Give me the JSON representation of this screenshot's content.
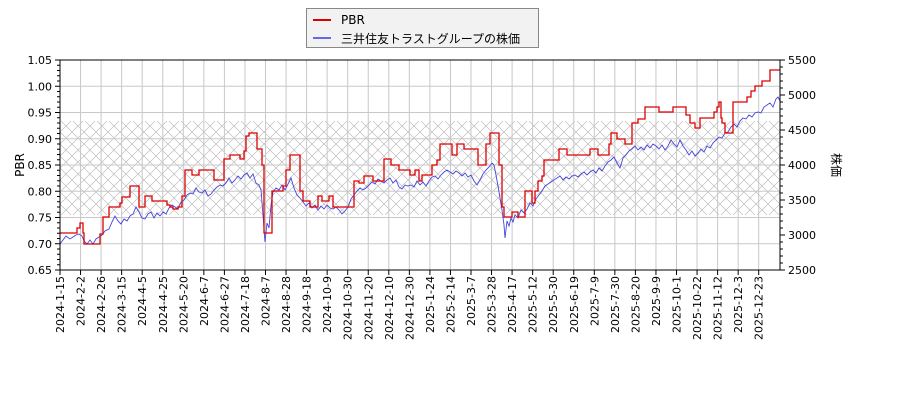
{
  "legend": {
    "items": [
      {
        "label": "PBR",
        "color": "#dd0000"
      },
      {
        "label": "三井住友トラストグループの株価",
        "color": "#4444dd"
      }
    ]
  },
  "axes": {
    "left_title": "PBR",
    "right_title": "株価",
    "left_ticks": [
      "0.65",
      "0.70",
      "0.75",
      "0.80",
      "0.85",
      "0.90",
      "0.95",
      "1.00",
      "1.05"
    ],
    "right_ticks": [
      "2500",
      "3000",
      "3500",
      "4000",
      "4500",
      "5000",
      "5500"
    ]
  },
  "chart_data": {
    "type": "line",
    "title": "",
    "xlabel": "",
    "ylabel": "PBR",
    "y2label": "株価",
    "ylim": [
      0.65,
      1.05
    ],
    "y2lim": [
      2500,
      5500
    ],
    "grid": true,
    "legend_position": "top-center",
    "shaded_band": {
      "y_from": 0.755,
      "y_to": 0.935,
      "pattern": "crosshatch"
    },
    "categories": [
      "2024-1-15",
      "2024-2-2",
      "2024-2-26",
      "2024-3-15",
      "2024-4-5",
      "2024-4-25",
      "2024-5-20",
      "2024-6-7",
      "2024-6-27",
      "2024-7-18",
      "2024-8-7",
      "2024-8-28",
      "2024-9-18",
      "2024-10-9",
      "2024-10-30",
      "2024-11-20",
      "2024-12-10",
      "2024-12-30",
      "2025-1-24",
      "2025-2-14",
      "2025-3-7",
      "2025-3-28",
      "2025-4-17",
      "2025-5-12",
      "2025-5-30",
      "2025-6-19",
      "2025-7-9",
      "2025-7-30",
      "2025-8-20",
      "2025-9-9",
      "2025-10-1",
      "2025-10-22",
      "2025-11-12",
      "2025-12-3",
      "2025-12-23"
    ],
    "series": [
      {
        "name": "PBR",
        "color": "#dd0000",
        "step": true,
        "values": [
          0.72,
          0.7,
          0.75,
          0.77,
          0.76,
          0.78,
          0.77,
          0.84,
          0.83,
          0.86,
          0.91,
          0.73,
          0.8,
          0.87,
          0.78,
          0.77,
          0.82,
          0.85,
          0.83,
          0.89,
          0.88,
          0.9,
          0.76,
          0.8,
          0.86,
          0.88,
          0.87,
          0.89,
          0.96,
          0.95,
          0.96,
          0.94,
          0.97,
          0.97,
          1.03
        ]
      },
      {
        "name": "三井住友トラストグループの株価",
        "color": "#4444dd",
        "axis": "right",
        "values": [
          2950,
          3000,
          3300,
          3450,
          3550,
          3500,
          3550,
          3750,
          3800,
          3900,
          4000,
          3100,
          3700,
          3650,
          3550,
          3550,
          3700,
          3700,
          3700,
          3900,
          3900,
          4050,
          3050,
          3500,
          3800,
          3850,
          3850,
          3950,
          4350,
          4400,
          4350,
          4250,
          4400,
          4800,
          5000
        ]
      }
    ]
  },
  "pbr_path": [
    [
      60,
      233
    ],
    [
      74,
      233
    ],
    [
      77,
      228
    ],
    [
      80,
      223
    ],
    [
      83,
      233
    ],
    [
      84,
      244
    ],
    [
      96,
      244
    ],
    [
      100,
      234
    ],
    [
      103,
      217
    ],
    [
      109,
      207
    ],
    [
      115,
      207
    ],
    [
      120,
      203
    ],
    [
      122,
      197
    ],
    [
      130,
      186
    ],
    [
      137,
      186
    ],
    [
      139,
      207
    ],
    [
      145,
      196
    ],
    [
      152,
      201
    ],
    [
      165,
      201
    ],
    [
      167,
      205
    ],
    [
      170,
      207
    ],
    [
      173,
      209
    ],
    [
      178,
      207
    ],
    [
      182,
      196
    ],
    [
      185,
      170
    ],
    [
      192,
      175
    ],
    [
      199,
      170
    ],
    [
      211,
      170
    ],
    [
      214,
      180
    ],
    [
      221,
      180
    ],
    [
      224,
      159
    ],
    [
      230,
      155
    ],
    [
      238,
      155
    ],
    [
      240,
      159
    ],
    [
      244,
      151
    ],
    [
      246,
      136
    ],
    [
      249,
      133
    ],
    [
      255,
      133
    ],
    [
      257,
      149
    ],
    [
      262,
      165
    ],
    [
      264,
      233
    ],
    [
      270,
      233
    ],
    [
      272,
      191
    ],
    [
      278,
      191
    ],
    [
      283,
      186
    ],
    [
      286,
      170
    ],
    [
      290,
      155
    ],
    [
      298,
      155
    ],
    [
      300,
      191
    ],
    [
      303,
      201
    ],
    [
      308,
      201
    ],
    [
      310,
      207
    ],
    [
      318,
      196
    ],
    [
      322,
      201
    ],
    [
      327,
      201
    ],
    [
      329,
      196
    ],
    [
      333,
      207
    ],
    [
      351,
      207
    ],
    [
      354,
      181
    ],
    [
      359,
      183
    ],
    [
      364,
      176
    ],
    [
      371,
      176
    ],
    [
      373,
      181
    ],
    [
      380,
      181
    ],
    [
      384,
      159
    ],
    [
      391,
      165
    ],
    [
      393,
      165
    ],
    [
      399,
      170
    ],
    [
      406,
      170
    ],
    [
      410,
      175
    ],
    [
      415,
      170
    ],
    [
      419,
      181
    ],
    [
      422,
      175
    ],
    [
      428,
      175
    ],
    [
      432,
      165
    ],
    [
      437,
      160
    ],
    [
      440,
      144
    ],
    [
      448,
      144
    ],
    [
      452,
      155
    ],
    [
      457,
      144
    ],
    [
      462,
      144
    ],
    [
      464,
      149
    ],
    [
      476,
      149
    ],
    [
      478,
      165
    ],
    [
      484,
      165
    ],
    [
      486,
      144
    ],
    [
      490,
      133
    ],
    [
      496,
      133
    ],
    [
      499,
      165
    ],
    [
      502,
      207
    ],
    [
      504,
      217
    ],
    [
      510,
      217
    ],
    [
      512,
      212
    ],
    [
      516,
      212
    ],
    [
      518,
      217
    ],
    [
      522,
      217
    ],
    [
      525,
      191
    ],
    [
      530,
      191
    ],
    [
      532,
      203
    ],
    [
      535,
      191
    ],
    [
      538,
      181
    ],
    [
      542,
      176
    ],
    [
      544,
      160
    ],
    [
      556,
      160
    ],
    [
      559,
      149
    ],
    [
      563,
      149
    ],
    [
      567,
      155
    ],
    [
      582,
      155
    ],
    [
      588,
      155
    ],
    [
      590,
      149
    ],
    [
      596,
      149
    ],
    [
      598,
      155
    ],
    [
      602,
      155
    ],
    [
      609,
      144
    ],
    [
      611,
      133
    ],
    [
      615,
      133
    ],
    [
      617,
      139
    ],
    [
      623,
      139
    ],
    [
      625,
      144
    ],
    [
      630,
      144
    ],
    [
      632,
      123
    ],
    [
      638,
      119
    ],
    [
      642,
      119
    ],
    [
      645,
      107
    ],
    [
      657,
      107
    ],
    [
      659,
      112
    ],
    [
      671,
      112
    ],
    [
      673,
      107
    ],
    [
      684,
      107
    ],
    [
      686,
      115
    ],
    [
      690,
      123
    ],
    [
      695,
      128
    ],
    [
      697,
      128
    ],
    [
      700,
      118
    ],
    [
      712,
      118
    ],
    [
      714,
      112
    ],
    [
      717,
      107
    ],
    [
      719,
      102
    ],
    [
      721,
      118
    ],
    [
      722,
      123
    ],
    [
      725,
      133
    ],
    [
      731,
      133
    ],
    [
      733,
      102
    ],
    [
      745,
      102
    ],
    [
      747,
      97
    ],
    [
      751,
      91
    ],
    [
      755,
      86
    ],
    [
      760,
      86
    ],
    [
      762,
      81
    ],
    [
      768,
      81
    ],
    [
      770,
      70
    ],
    [
      780,
      70
    ]
  ],
  "price_path": [
    [
      60,
      244
    ],
    [
      63,
      240
    ],
    [
      66,
      236
    ],
    [
      70,
      239
    ],
    [
      73,
      237
    ],
    [
      76,
      235
    ],
    [
      79,
      234
    ],
    [
      82,
      236
    ],
    [
      84,
      241
    ],
    [
      87,
      244
    ],
    [
      90,
      240
    ],
    [
      93,
      244
    ],
    [
      96,
      239
    ],
    [
      99,
      237
    ],
    [
      102,
      235
    ],
    [
      105,
      231
    ],
    [
      109,
      229
    ],
    [
      112,
      222
    ],
    [
      115,
      216
    ],
    [
      118,
      221
    ],
    [
      121,
      224
    ],
    [
      124,
      219
    ],
    [
      127,
      221
    ],
    [
      130,
      216
    ],
    [
      133,
      214
    ],
    [
      136,
      207
    ],
    [
      139,
      212
    ],
    [
      142,
      218
    ],
    [
      145,
      219
    ],
    [
      148,
      214
    ],
    [
      151,
      212
    ],
    [
      154,
      218
    ],
    [
      157,
      213
    ],
    [
      160,
      216
    ],
    [
      163,
      212
    ],
    [
      166,
      214
    ],
    [
      169,
      208
    ],
    [
      172,
      205
    ],
    [
      175,
      207
    ],
    [
      178,
      209
    ],
    [
      181,
      202
    ],
    [
      184,
      200
    ],
    [
      187,
      195
    ],
    [
      190,
      193
    ],
    [
      193,
      194
    ],
    [
      196,
      188
    ],
    [
      199,
      192
    ],
    [
      202,
      193
    ],
    [
      205,
      190
    ],
    [
      208,
      196
    ],
    [
      211,
      194
    ],
    [
      214,
      190
    ],
    [
      217,
      187
    ],
    [
      220,
      185
    ],
    [
      223,
      186
    ],
    [
      226,
      183
    ],
    [
      229,
      178
    ],
    [
      232,
      183
    ],
    [
      235,
      180
    ],
    [
      238,
      176
    ],
    [
      241,
      179
    ],
    [
      244,
      175
    ],
    [
      247,
      173
    ],
    [
      250,
      178
    ],
    [
      253,
      174
    ],
    [
      256,
      183
    ],
    [
      259,
      185
    ],
    [
      261,
      190
    ],
    [
      263,
      215
    ],
    [
      265,
      242
    ],
    [
      267,
      223
    ],
    [
      269,
      228
    ],
    [
      271,
      205
    ],
    [
      273,
      192
    ],
    [
      276,
      188
    ],
    [
      279,
      190
    ],
    [
      282,
      185
    ],
    [
      285,
      190
    ],
    [
      288,
      184
    ],
    [
      291,
      178
    ],
    [
      294,
      188
    ],
    [
      297,
      195
    ],
    [
      300,
      198
    ],
    [
      303,
      202
    ],
    [
      306,
      206
    ],
    [
      309,
      203
    ],
    [
      312,
      208
    ],
    [
      315,
      205
    ],
    [
      318,
      210
    ],
    [
      321,
      206
    ],
    [
      324,
      209
    ],
    [
      327,
      205
    ],
    [
      330,
      208
    ],
    [
      333,
      209
    ],
    [
      336,
      207
    ],
    [
      339,
      210
    ],
    [
      342,
      214
    ],
    [
      345,
      211
    ],
    [
      348,
      207
    ],
    [
      351,
      199
    ],
    [
      354,
      195
    ],
    [
      357,
      191
    ],
    [
      360,
      188
    ],
    [
      363,
      190
    ],
    [
      366,
      188
    ],
    [
      369,
      185
    ],
    [
      372,
      182
    ],
    [
      375,
      184
    ],
    [
      378,
      179
    ],
    [
      381,
      181
    ],
    [
      384,
      183
    ],
    [
      387,
      180
    ],
    [
      390,
      178
    ],
    [
      393,
      183
    ],
    [
      396,
      180
    ],
    [
      399,
      187
    ],
    [
      402,
      189
    ],
    [
      405,
      185
    ],
    [
      408,
      186
    ],
    [
      411,
      185
    ],
    [
      414,
      187
    ],
    [
      417,
      181
    ],
    [
      420,
      185
    ],
    [
      423,
      182
    ],
    [
      426,
      186
    ],
    [
      429,
      181
    ],
    [
      432,
      177
    ],
    [
      435,
      176
    ],
    [
      438,
      179
    ],
    [
      441,
      175
    ],
    [
      444,
      172
    ],
    [
      447,
      170
    ],
    [
      450,
      172
    ],
    [
      453,
      174
    ],
    [
      456,
      171
    ],
    [
      459,
      173
    ],
    [
      462,
      176
    ],
    [
      465,
      173
    ],
    [
      468,
      177
    ],
    [
      471,
      175
    ],
    [
      474,
      181
    ],
    [
      477,
      185
    ],
    [
      480,
      180
    ],
    [
      483,
      174
    ],
    [
      486,
      170
    ],
    [
      489,
      167
    ],
    [
      492,
      163
    ],
    [
      494,
      165
    ],
    [
      496,
      175
    ],
    [
      498,
      186
    ],
    [
      500,
      198
    ],
    [
      502,
      210
    ],
    [
      504,
      225
    ],
    [
      505,
      238
    ],
    [
      507,
      221
    ],
    [
      509,
      226
    ],
    [
      511,
      218
    ],
    [
      513,
      222
    ],
    [
      515,
      215
    ],
    [
      518,
      218
    ],
    [
      521,
      210
    ],
    [
      524,
      213
    ],
    [
      527,
      209
    ],
    [
      530,
      203
    ],
    [
      533,
      206
    ],
    [
      536,
      199
    ],
    [
      539,
      195
    ],
    [
      542,
      191
    ],
    [
      545,
      186
    ],
    [
      548,
      184
    ],
    [
      551,
      182
    ],
    [
      554,
      180
    ],
    [
      557,
      178
    ],
    [
      560,
      176
    ],
    [
      563,
      180
    ],
    [
      566,
      177
    ],
    [
      569,
      179
    ],
    [
      572,
      176
    ],
    [
      575,
      175
    ],
    [
      578,
      177
    ],
    [
      581,
      174
    ],
    [
      584,
      172
    ],
    [
      587,
      175
    ],
    [
      590,
      172
    ],
    [
      593,
      170
    ],
    [
      596,
      173
    ],
    [
      599,
      168
    ],
    [
      602,
      171
    ],
    [
      605,
      166
    ],
    [
      608,
      162
    ],
    [
      611,
      160
    ],
    [
      614,
      157
    ],
    [
      617,
      163
    ],
    [
      620,
      168
    ],
    [
      623,
      158
    ],
    [
      626,
      155
    ],
    [
      629,
      151
    ],
    [
      632,
      149
    ],
    [
      635,
      146
    ],
    [
      638,
      150
    ],
    [
      641,
      147
    ],
    [
      644,
      150
    ],
    [
      647,
      145
    ],
    [
      650,
      148
    ],
    [
      653,
      144
    ],
    [
      656,
      146
    ],
    [
      659,
      149
    ],
    [
      662,
      145
    ],
    [
      665,
      150
    ],
    [
      668,
      146
    ],
    [
      671,
      140
    ],
    [
      674,
      144
    ],
    [
      677,
      147
    ],
    [
      680,
      140
    ],
    [
      683,
      146
    ],
    [
      686,
      150
    ],
    [
      689,
      155
    ],
    [
      692,
      151
    ],
    [
      695,
      156
    ],
    [
      698,
      153
    ],
    [
      701,
      149
    ],
    [
      704,
      152
    ],
    [
      707,
      146
    ],
    [
      710,
      148
    ],
    [
      713,
      143
    ],
    [
      716,
      140
    ],
    [
      719,
      137
    ],
    [
      722,
      138
    ],
    [
      725,
      133
    ],
    [
      728,
      132
    ],
    [
      731,
      127
    ],
    [
      734,
      124
    ],
    [
      737,
      127
    ],
    [
      740,
      121
    ],
    [
      743,
      118
    ],
    [
      746,
      119
    ],
    [
      749,
      115
    ],
    [
      752,
      117
    ],
    [
      755,
      113
    ],
    [
      758,
      112
    ],
    [
      761,
      113
    ],
    [
      764,
      107
    ],
    [
      767,
      105
    ],
    [
      770,
      103
    ],
    [
      773,
      107
    ],
    [
      776,
      99
    ],
    [
      778,
      97
    ],
    [
      780,
      101
    ]
  ]
}
